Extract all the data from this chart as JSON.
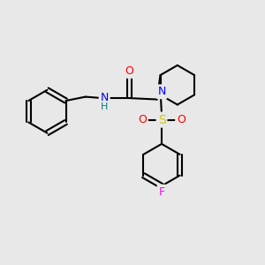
{
  "background_color": "#e8e8e8",
  "bond_color": "black",
  "bond_width": 1.5,
  "atom_colors": {
    "N": "#0000ff",
    "O": "#ff0000",
    "S": "#cccc00",
    "F": "#ff00ff",
    "C": "black",
    "H": "#008080"
  },
  "font_size": 9,
  "fig_size": [
    3.0,
    3.0
  ],
  "dpi": 100
}
